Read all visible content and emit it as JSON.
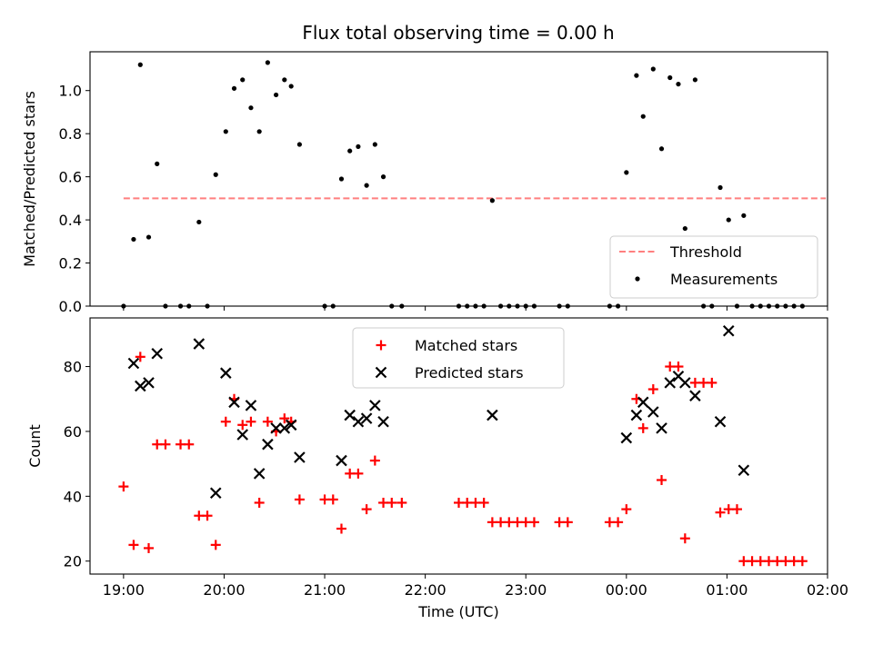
{
  "title": "Flux total observing time = 0.00 h",
  "colors": {
    "threshold": "#ff7f7f",
    "measurements": "#000000",
    "matched": "#ff0000",
    "predicted": "#000000"
  },
  "chart_data": [
    {
      "type": "scatter",
      "panel": "top",
      "ylabel": "Matched/Predicted stars",
      "xlabel": "",
      "xlim": [
        "18:40",
        "02:00"
      ],
      "ylim": [
        0.0,
        1.18
      ],
      "x_ticks": [
        "19:00",
        "20:00",
        "21:00",
        "22:00",
        "23:00",
        "00:00",
        "01:00",
        "02:00"
      ],
      "x_ticklabels_visible": false,
      "y_ticks": [
        "0.0",
        "0.2",
        "0.4",
        "0.6",
        "0.8",
        "1.0"
      ],
      "legend_position": "lower right",
      "threshold": {
        "name": "Threshold",
        "value": 0.5,
        "x_range": [
          "19:00",
          "01:59"
        ],
        "style": "dashed"
      },
      "series": [
        {
          "name": "Measurements",
          "marker": "dot",
          "points": [
            [
              "19:00",
              0.0
            ],
            [
              "19:06",
              0.31
            ],
            [
              "19:10",
              1.12
            ],
            [
              "19:15",
              0.32
            ],
            [
              "19:20",
              0.66
            ],
            [
              "19:25",
              0.0
            ],
            [
              "19:34",
              0.0
            ],
            [
              "19:39",
              0.0
            ],
            [
              "19:45",
              0.39
            ],
            [
              "19:50",
              0.0
            ],
            [
              "19:55",
              0.61
            ],
            [
              "20:01",
              0.81
            ],
            [
              "20:06",
              1.01
            ],
            [
              "20:11",
              1.05
            ],
            [
              "20:16",
              0.92
            ],
            [
              "20:21",
              0.81
            ],
            [
              "20:26",
              1.13
            ],
            [
              "20:31",
              0.98
            ],
            [
              "20:36",
              1.05
            ],
            [
              "20:40",
              1.02
            ],
            [
              "20:45",
              0.75
            ],
            [
              "21:00",
              0.0
            ],
            [
              "21:05",
              0.0
            ],
            [
              "21:10",
              0.59
            ],
            [
              "21:15",
              0.72
            ],
            [
              "21:20",
              0.74
            ],
            [
              "21:25",
              0.56
            ],
            [
              "21:30",
              0.75
            ],
            [
              "21:35",
              0.6
            ],
            [
              "21:40",
              0.0
            ],
            [
              "21:46",
              0.0
            ],
            [
              "22:20",
              0.0
            ],
            [
              "22:25",
              0.0
            ],
            [
              "22:30",
              0.0
            ],
            [
              "22:35",
              0.0
            ],
            [
              "22:40",
              0.49
            ],
            [
              "22:45",
              0.0
            ],
            [
              "22:50",
              0.0
            ],
            [
              "22:55",
              0.0
            ],
            [
              "23:00",
              0.0
            ],
            [
              "23:05",
              0.0
            ],
            [
              "23:20",
              0.0
            ],
            [
              "23:25",
              0.0
            ],
            [
              "23:50",
              0.0
            ],
            [
              "23:55",
              0.0
            ],
            [
              "00:00",
              0.62
            ],
            [
              "00:06",
              1.07
            ],
            [
              "00:10",
              0.88
            ],
            [
              "00:16",
              1.1
            ],
            [
              "00:21",
              0.73
            ],
            [
              "00:26",
              1.06
            ],
            [
              "00:31",
              1.03
            ],
            [
              "00:35",
              0.36
            ],
            [
              "00:41",
              1.05
            ],
            [
              "00:46",
              0.0
            ],
            [
              "00:51",
              0.0
            ],
            [
              "00:56",
              0.55
            ],
            [
              "01:01",
              0.4
            ],
            [
              "01:06",
              0.0
            ],
            [
              "01:10",
              0.42
            ],
            [
              "01:15",
              0.0
            ],
            [
              "01:20",
              0.0
            ],
            [
              "01:25",
              0.0
            ],
            [
              "01:30",
              0.0
            ],
            [
              "01:35",
              0.0
            ],
            [
              "01:40",
              0.0
            ],
            [
              "01:45",
              0.0
            ]
          ]
        }
      ]
    },
    {
      "type": "scatter",
      "panel": "bottom",
      "xlabel": "Time (UTC)",
      "ylabel": "Count",
      "xlim": [
        "18:40",
        "02:00"
      ],
      "ylim": [
        16,
        95
      ],
      "x_ticks": [
        "19:00",
        "20:00",
        "21:00",
        "22:00",
        "23:00",
        "00:00",
        "01:00",
        "02:00"
      ],
      "y_ticks": [
        "20",
        "40",
        "60",
        "80"
      ],
      "legend_position": "upper center",
      "series": [
        {
          "name": "Matched stars",
          "marker": "plus",
          "points": [
            [
              "19:00",
              43
            ],
            [
              "19:06",
              25
            ],
            [
              "19:10",
              83
            ],
            [
              "19:15",
              24
            ],
            [
              "19:20",
              56
            ],
            [
              "19:25",
              56
            ],
            [
              "19:34",
              56
            ],
            [
              "19:39",
              56
            ],
            [
              "19:45",
              34
            ],
            [
              "19:50",
              34
            ],
            [
              "19:55",
              25
            ],
            [
              "20:01",
              63
            ],
            [
              "20:06",
              70
            ],
            [
              "20:11",
              62
            ],
            [
              "20:16",
              63
            ],
            [
              "20:21",
              38
            ],
            [
              "20:26",
              63
            ],
            [
              "20:31",
              60
            ],
            [
              "20:36",
              64
            ],
            [
              "20:40",
              63
            ],
            [
              "20:45",
              39
            ],
            [
              "21:00",
              39
            ],
            [
              "21:05",
              39
            ],
            [
              "21:10",
              30
            ],
            [
              "21:15",
              47
            ],
            [
              "21:20",
              47
            ],
            [
              "21:25",
              36
            ],
            [
              "21:30",
              51
            ],
            [
              "21:35",
              38
            ],
            [
              "21:40",
              38
            ],
            [
              "21:46",
              38
            ],
            [
              "22:20",
              38
            ],
            [
              "22:25",
              38
            ],
            [
              "22:30",
              38
            ],
            [
              "22:35",
              38
            ],
            [
              "22:40",
              32
            ],
            [
              "22:45",
              32
            ],
            [
              "22:50",
              32
            ],
            [
              "22:55",
              32
            ],
            [
              "23:00",
              32
            ],
            [
              "23:05",
              32
            ],
            [
              "23:20",
              32
            ],
            [
              "23:25",
              32
            ],
            [
              "23:50",
              32
            ],
            [
              "23:55",
              32
            ],
            [
              "00:00",
              36
            ],
            [
              "00:06",
              70
            ],
            [
              "00:10",
              61
            ],
            [
              "00:16",
              73
            ],
            [
              "00:21",
              45
            ],
            [
              "00:26",
              80
            ],
            [
              "00:31",
              80
            ],
            [
              "00:35",
              27
            ],
            [
              "00:41",
              75
            ],
            [
              "00:46",
              75
            ],
            [
              "00:51",
              75
            ],
            [
              "00:56",
              35
            ],
            [
              "01:01",
              36
            ],
            [
              "01:06",
              36
            ],
            [
              "01:10",
              20
            ],
            [
              "01:15",
              20
            ],
            [
              "01:20",
              20
            ],
            [
              "01:25",
              20
            ],
            [
              "01:30",
              20
            ],
            [
              "01:35",
              20
            ],
            [
              "01:40",
              20
            ],
            [
              "01:45",
              20
            ]
          ]
        },
        {
          "name": "Predicted stars",
          "marker": "x",
          "points": [
            [
              "19:06",
              81
            ],
            [
              "19:10",
              74
            ],
            [
              "19:15",
              75
            ],
            [
              "19:20",
              84
            ],
            [
              "19:45",
              87
            ],
            [
              "19:55",
              41
            ],
            [
              "20:01",
              78
            ],
            [
              "20:06",
              69
            ],
            [
              "20:11",
              59
            ],
            [
              "20:16",
              68
            ],
            [
              "20:21",
              47
            ],
            [
              "20:26",
              56
            ],
            [
              "20:31",
              61
            ],
            [
              "20:36",
              61
            ],
            [
              "20:40",
              62
            ],
            [
              "20:45",
              52
            ],
            [
              "21:10",
              51
            ],
            [
              "21:15",
              65
            ],
            [
              "21:20",
              63
            ],
            [
              "21:25",
              64
            ],
            [
              "21:30",
              68
            ],
            [
              "21:35",
              63
            ],
            [
              "22:40",
              65
            ],
            [
              "00:00",
              58
            ],
            [
              "00:06",
              65
            ],
            [
              "00:10",
              69
            ],
            [
              "00:16",
              66
            ],
            [
              "00:21",
              61
            ],
            [
              "00:26",
              75
            ],
            [
              "00:31",
              77
            ],
            [
              "00:35",
              75
            ],
            [
              "00:41",
              71
            ],
            [
              "00:56",
              63
            ],
            [
              "01:01",
              91
            ],
            [
              "01:10",
              48
            ]
          ]
        }
      ]
    }
  ]
}
